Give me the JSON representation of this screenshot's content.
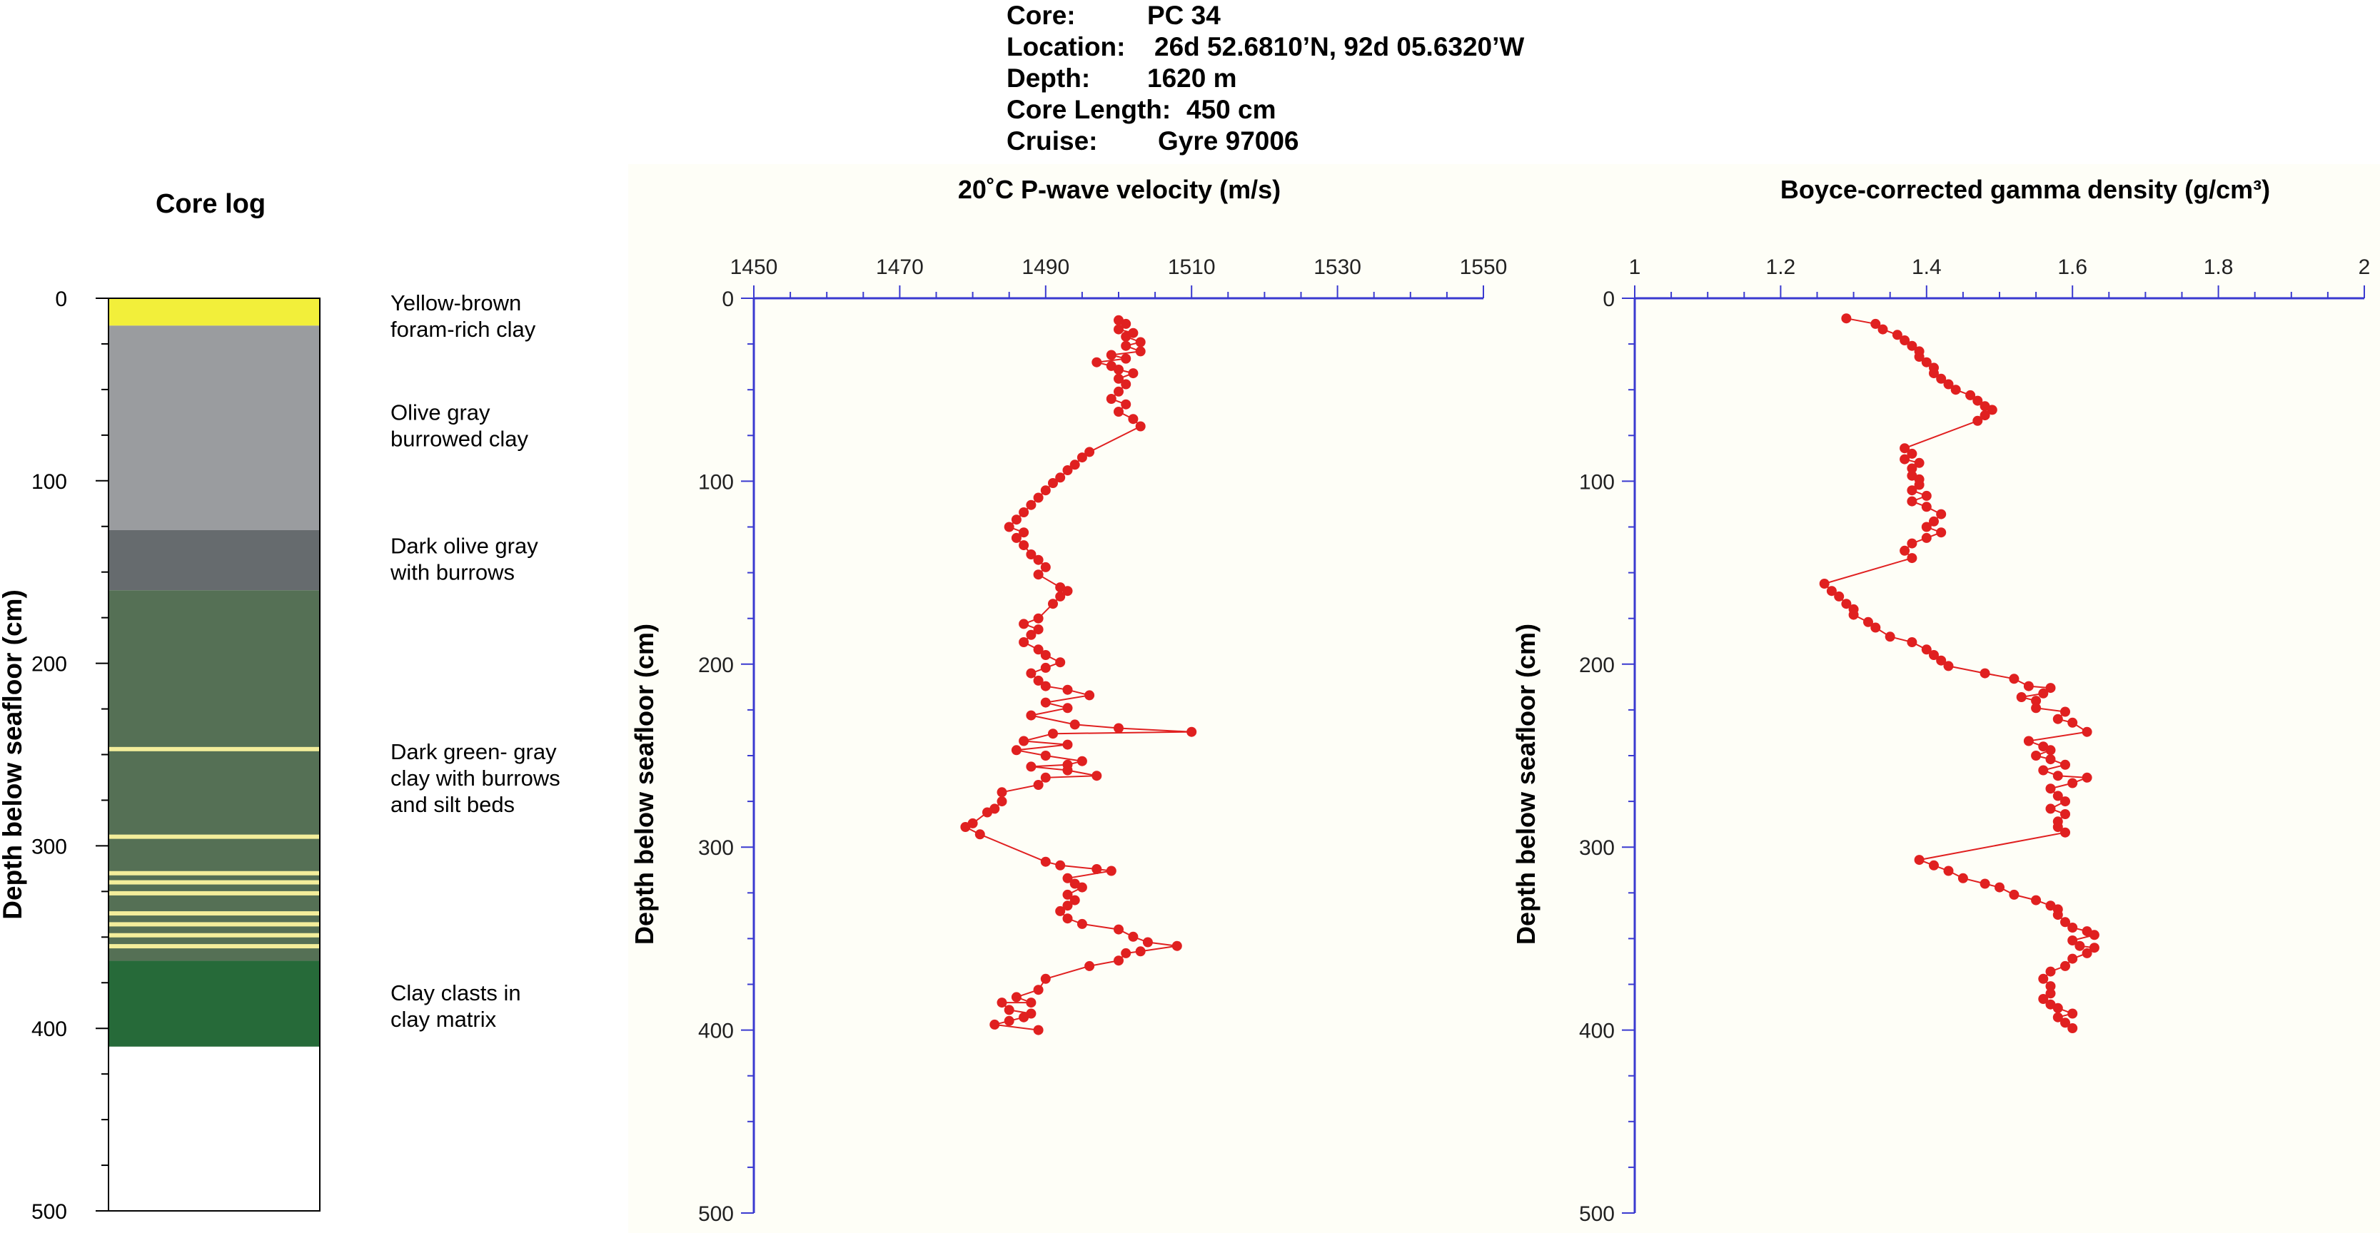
{
  "header": {
    "core_label": "Core:",
    "core_value": "PC 34",
    "location_label": "Location:",
    "location_value": "26d 52.6810’N, 92d 05.6320’W",
    "depth_label": "Depth:",
    "depth_value": "1620 m",
    "length_label": "Core Length:",
    "length_value": "450 cm",
    "cruise_label": "Cruise:",
    "cruise_value": "Gyre 97006"
  },
  "core_log": {
    "title": "Core log",
    "ylabel": "Depth below seafloor (cm)",
    "ylim": [
      0,
      500
    ],
    "yticks": [
      0,
      100,
      200,
      300,
      400,
      500
    ],
    "layers": [
      {
        "top": 0,
        "bottom": 15,
        "color": "#f2ef3a"
      },
      {
        "top": 15,
        "bottom": 127,
        "color": "#9a9c9f"
      },
      {
        "top": 127,
        "bottom": 160,
        "color": "#666b6e"
      },
      {
        "top": 160,
        "bottom": 363,
        "color": "#557055"
      },
      {
        "top": 363,
        "bottom": 410,
        "color": "#266a39"
      }
    ],
    "silt_beds": [
      247,
      295,
      315,
      320,
      326,
      337,
      343,
      349,
      355
    ],
    "silt_color": "#f3ee9b",
    "descriptions": [
      {
        "depth": 10,
        "lines": [
          "Yellow-brown",
          "foram-rich clay"
        ]
      },
      {
        "depth": 70,
        "lines": [
          "Olive gray",
          "burrowed clay"
        ]
      },
      {
        "depth": 143,
        "lines": [
          "Dark olive gray",
          "with burrows"
        ]
      },
      {
        "depth": 263,
        "lines": [
          "Dark green- gray",
          "clay with burrows",
          "and silt beds"
        ]
      },
      {
        "depth": 388,
        "lines": [
          "Clay clasts in",
          "clay matrix"
        ]
      }
    ]
  },
  "chart_data": [
    {
      "type": "line",
      "title": "20˚C P-wave velocity (m/s)",
      "ylabel": "Depth below seafloor (cm)",
      "xlim": [
        1450,
        1550
      ],
      "xticks": [
        1450,
        1470,
        1490,
        1510,
        1530,
        1550
      ],
      "ylim": [
        0,
        500
      ],
      "yticks": [
        0,
        100,
        200,
        300,
        400,
        500
      ],
      "series_color": "#e02020",
      "points": [
        [
          1500,
          12
        ],
        [
          1501,
          14
        ],
        [
          1500,
          17
        ],
        [
          1502,
          19
        ],
        [
          1501,
          21
        ],
        [
          1503,
          24
        ],
        [
          1501,
          26
        ],
        [
          1503,
          29
        ],
        [
          1499,
          31
        ],
        [
          1501,
          33
        ],
        [
          1497,
          35
        ],
        [
          1499,
          37
        ],
        [
          1500,
          39
        ],
        [
          1502,
          41
        ],
        [
          1500,
          44
        ],
        [
          1501,
          47
        ],
        [
          1500,
          51
        ],
        [
          1499,
          55
        ],
        [
          1501,
          58
        ],
        [
          1500,
          62
        ],
        [
          1502,
          66
        ],
        [
          1503,
          70
        ],
        [
          1496,
          84
        ],
        [
          1495,
          87
        ],
        [
          1494,
          91
        ],
        [
          1493,
          94
        ],
        [
          1492,
          98
        ],
        [
          1491,
          101
        ],
        [
          1490,
          105
        ],
        [
          1489,
          109
        ],
        [
          1488,
          113
        ],
        [
          1487,
          117
        ],
        [
          1486,
          121
        ],
        [
          1485,
          125
        ],
        [
          1487,
          128
        ],
        [
          1486,
          131
        ],
        [
          1487,
          135
        ],
        [
          1488,
          140
        ],
        [
          1489,
          143
        ],
        [
          1490,
          147
        ],
        [
          1489,
          151
        ],
        [
          1492,
          158
        ],
        [
          1493,
          160
        ],
        [
          1492,
          163
        ],
        [
          1491,
          167
        ],
        [
          1489,
          175
        ],
        [
          1487,
          178
        ],
        [
          1489,
          181
        ],
        [
          1488,
          184
        ],
        [
          1487,
          188
        ],
        [
          1489,
          192
        ],
        [
          1490,
          195
        ],
        [
          1492,
          199
        ],
        [
          1490,
          202
        ],
        [
          1488,
          205
        ],
        [
          1489,
          209
        ],
        [
          1490,
          212
        ],
        [
          1493,
          214
        ],
        [
          1496,
          217
        ],
        [
          1490,
          221
        ],
        [
          1493,
          224
        ],
        [
          1488,
          228
        ],
        [
          1494,
          233
        ],
        [
          1500,
          235
        ],
        [
          1510,
          237
        ],
        [
          1491,
          238
        ],
        [
          1487,
          242
        ],
        [
          1493,
          244
        ],
        [
          1486,
          247
        ],
        [
          1490,
          250
        ],
        [
          1495,
          253
        ],
        [
          1493,
          255
        ],
        [
          1488,
          256
        ],
        [
          1493,
          258
        ],
        [
          1497,
          261
        ],
        [
          1490,
          262
        ],
        [
          1489,
          266
        ],
        [
          1484,
          270
        ],
        [
          1484,
          275
        ],
        [
          1483,
          279
        ],
        [
          1482,
          281
        ],
        [
          1480,
          287
        ],
        [
          1479,
          289
        ],
        [
          1481,
          293
        ],
        [
          1490,
          308
        ],
        [
          1492,
          310
        ],
        [
          1497,
          312
        ],
        [
          1499,
          313
        ],
        [
          1493,
          317
        ],
        [
          1494,
          320
        ],
        [
          1495,
          322
        ],
        [
          1493,
          326
        ],
        [
          1494,
          329
        ],
        [
          1493,
          332
        ],
        [
          1492,
          335
        ],
        [
          1493,
          339
        ],
        [
          1495,
          342
        ],
        [
          1500,
          345
        ],
        [
          1502,
          349
        ],
        [
          1504,
          352
        ],
        [
          1508,
          354
        ],
        [
          1503,
          357
        ],
        [
          1501,
          358
        ],
        [
          1500,
          362
        ],
        [
          1496,
          365
        ],
        [
          1490,
          372
        ],
        [
          1489,
          378
        ],
        [
          1486,
          382
        ],
        [
          1488,
          385
        ],
        [
          1484,
          385
        ],
        [
          1485,
          389
        ],
        [
          1488,
          391
        ],
        [
          1487,
          393
        ],
        [
          1485,
          395
        ],
        [
          1483,
          397
        ],
        [
          1489,
          400
        ]
      ]
    },
    {
      "type": "line",
      "title": "Boyce-corrected gamma density (g/cm³)",
      "ylabel": "Depth below seafloor (cm)",
      "xlim": [
        1,
        2
      ],
      "xticks": [
        1,
        1.2,
        1.4,
        1.6,
        1.8,
        2
      ],
      "ylim": [
        0,
        500
      ],
      "yticks": [
        0,
        100,
        200,
        300,
        400,
        500
      ],
      "series_color": "#e02020",
      "points": [
        [
          1.29,
          11
        ],
        [
          1.33,
          14
        ],
        [
          1.34,
          17
        ],
        [
          1.36,
          20
        ],
        [
          1.37,
          23
        ],
        [
          1.38,
          26
        ],
        [
          1.39,
          29
        ],
        [
          1.39,
          32
        ],
        [
          1.4,
          35
        ],
        [
          1.41,
          38
        ],
        [
          1.41,
          41
        ],
        [
          1.42,
          44
        ],
        [
          1.43,
          47
        ],
        [
          1.44,
          50
        ],
        [
          1.46,
          53
        ],
        [
          1.47,
          56
        ],
        [
          1.48,
          59
        ],
        [
          1.49,
          61
        ],
        [
          1.48,
          64
        ],
        [
          1.47,
          67
        ],
        [
          1.37,
          82
        ],
        [
          1.38,
          85
        ],
        [
          1.37,
          88
        ],
        [
          1.39,
          90
        ],
        [
          1.38,
          93
        ],
        [
          1.38,
          97
        ],
        [
          1.39,
          99
        ],
        [
          1.39,
          102
        ],
        [
          1.38,
          105
        ],
        [
          1.4,
          108
        ],
        [
          1.38,
          111
        ],
        [
          1.4,
          114
        ],
        [
          1.42,
          118
        ],
        [
          1.41,
          122
        ],
        [
          1.4,
          125
        ],
        [
          1.42,
          128
        ],
        [
          1.4,
          131
        ],
        [
          1.38,
          134
        ],
        [
          1.37,
          138
        ],
        [
          1.38,
          142
        ],
        [
          1.26,
          156
        ],
        [
          1.27,
          160
        ],
        [
          1.28,
          163
        ],
        [
          1.29,
          167
        ],
        [
          1.3,
          170
        ],
        [
          1.3,
          173
        ],
        [
          1.32,
          177
        ],
        [
          1.33,
          180
        ],
        [
          1.35,
          185
        ],
        [
          1.38,
          188
        ],
        [
          1.4,
          192
        ],
        [
          1.41,
          195
        ],
        [
          1.42,
          198
        ],
        [
          1.43,
          201
        ],
        [
          1.48,
          205
        ],
        [
          1.52,
          208
        ],
        [
          1.54,
          212
        ],
        [
          1.57,
          213
        ],
        [
          1.56,
          216
        ],
        [
          1.53,
          218
        ],
        [
          1.55,
          220
        ],
        [
          1.55,
          224
        ],
        [
          1.59,
          226
        ],
        [
          1.58,
          230
        ],
        [
          1.6,
          232
        ],
        [
          1.62,
          237
        ],
        [
          1.54,
          242
        ],
        [
          1.56,
          245
        ],
        [
          1.57,
          247
        ],
        [
          1.55,
          250
        ],
        [
          1.57,
          252
        ],
        [
          1.59,
          255
        ],
        [
          1.56,
          258
        ],
        [
          1.58,
          261
        ],
        [
          1.62,
          262
        ],
        [
          1.6,
          265
        ],
        [
          1.57,
          268
        ],
        [
          1.58,
          272
        ],
        [
          1.59,
          275
        ],
        [
          1.57,
          279
        ],
        [
          1.59,
          282
        ],
        [
          1.58,
          286
        ],
        [
          1.58,
          289
        ],
        [
          1.59,
          292
        ],
        [
          1.39,
          307
        ],
        [
          1.41,
          310
        ],
        [
          1.43,
          313
        ],
        [
          1.45,
          317
        ],
        [
          1.48,
          320
        ],
        [
          1.5,
          322
        ],
        [
          1.52,
          326
        ],
        [
          1.55,
          329
        ],
        [
          1.57,
          332
        ],
        [
          1.58,
          334
        ],
        [
          1.58,
          337
        ],
        [
          1.59,
          341
        ],
        [
          1.6,
          344
        ],
        [
          1.62,
          346
        ],
        [
          1.63,
          348
        ],
        [
          1.6,
          351
        ],
        [
          1.61,
          354
        ],
        [
          1.63,
          355
        ],
        [
          1.62,
          358
        ],
        [
          1.6,
          361
        ],
        [
          1.59,
          365
        ],
        [
          1.57,
          368
        ],
        [
          1.56,
          372
        ],
        [
          1.57,
          376
        ],
        [
          1.57,
          380
        ],
        [
          1.56,
          383
        ],
        [
          1.57,
          386
        ],
        [
          1.58,
          388
        ],
        [
          1.6,
          391
        ],
        [
          1.58,
          393
        ],
        [
          1.59,
          396
        ],
        [
          1.6,
          399
        ]
      ]
    }
  ]
}
